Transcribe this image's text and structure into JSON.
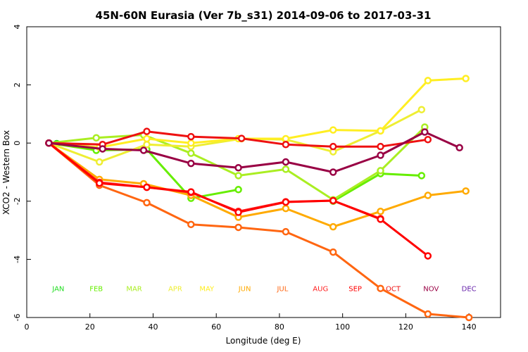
{
  "chart_data": {
    "type": "line",
    "title": "45N-60N Eurasia (Ver 7b_s31)   2014-09-06 to 2017-03-31",
    "xlabel": "Longitude (deg E)",
    "ylabel": "XCO2 - Western Box",
    "xlim": [
      0,
      150
    ],
    "ylim": [
      -6,
      4
    ],
    "x_ticks": [
      0,
      20,
      40,
      60,
      80,
      100,
      120,
      140
    ],
    "y_ticks": [
      -6,
      -4,
      -2,
      0,
      2,
      4
    ],
    "x_tick_labels": [
      "0",
      "20",
      "40",
      "60",
      "80",
      "100",
      "120",
      "140"
    ],
    "y_tick_labels": [
      "-6",
      "-4",
      "-2",
      "0",
      "2",
      "4"
    ],
    "grid": false,
    "legend_placement": "bottom (month labels in a row at y = -5)",
    "legend_y": -5,
    "series": [
      {
        "name": "JAN",
        "color": "#22dd22",
        "legend_x": 10,
        "x": [
          7,
          9.5
        ],
        "y": [
          0,
          -0.02
        ]
      },
      {
        "name": "FEB",
        "color": "#66ee00",
        "legend_x": 22,
        "x": [
          7,
          22,
          38,
          52,
          67,
          82,
          97,
          112,
          125
        ],
        "y": [
          0,
          -0.25,
          -0.22,
          -1.9,
          -1.6,
          null,
          -2.0,
          -1.05,
          -1.12
        ]
      },
      {
        "name": "MAR",
        "color": "#aaee22",
        "legend_x": 34,
        "x": [
          7,
          22,
          37,
          52,
          67,
          82,
          97,
          112,
          126
        ],
        "y": [
          0,
          0.18,
          0.28,
          -0.35,
          -1.12,
          -0.9,
          -1.95,
          -0.95,
          0.55
        ]
      },
      {
        "name": "APR",
        "color": "#eeee33",
        "legend_x": 47,
        "x": [
          7,
          23,
          38,
          52,
          68,
          82,
          97,
          112,
          125
        ],
        "y": [
          0,
          -0.65,
          -0.05,
          -0.12,
          0.15,
          0.12,
          -0.3,
          0.42,
          1.15
        ]
      },
      {
        "name": "MAY",
        "color": "#ffee22",
        "legend_x": 57,
        "x": [
          7,
          23,
          38,
          52,
          67,
          82,
          97,
          112,
          127,
          139
        ],
        "y": [
          0,
          -0.15,
          0.15,
          0.0,
          0.15,
          0.15,
          0.45,
          0.42,
          2.15,
          2.22
        ]
      },
      {
        "name": "JUN",
        "color": "#ffaa00",
        "legend_x": 69,
        "x": [
          7,
          23,
          37,
          52,
          67,
          82,
          97,
          112,
          127,
          139
        ],
        "y": [
          0,
          -1.25,
          -1.4,
          -1.8,
          -2.55,
          -2.25,
          -2.88,
          -2.35,
          -1.8,
          -1.65
        ]
      },
      {
        "name": "JUL",
        "color": "#ff6611",
        "legend_x": 81,
        "x": [
          7,
          23,
          38,
          52,
          67,
          82,
          97,
          112,
          127,
          140
        ],
        "y": [
          0,
          -1.45,
          -2.05,
          -2.8,
          -2.9,
          -3.05,
          -3.75,
          -5.0,
          -5.88,
          -6.0
        ]
      },
      {
        "name": "AUG",
        "color": "#ff2222",
        "legend_x": 93,
        "x": [
          7,
          23,
          38,
          52,
          67,
          82,
          97,
          112
        ],
        "y": [
          0,
          -1.35,
          -1.52,
          -1.7,
          -2.35,
          -2.02,
          -1.98,
          -2.6
        ]
      },
      {
        "name": "SEP",
        "color": "#ff0000",
        "legend_x": 104,
        "x": [
          7,
          23,
          38,
          52,
          67,
          82,
          97,
          112,
          127
        ],
        "y": [
          0,
          -1.38,
          -1.52,
          -1.68,
          -2.38,
          -2.03,
          -1.98,
          -2.62,
          -3.88
        ]
      },
      {
        "name": "OCT",
        "color": "#ee1111",
        "legend_x": 116,
        "x": [
          7,
          24,
          38,
          52,
          68,
          82,
          97,
          112,
          127
        ],
        "y": [
          0,
          -0.05,
          0.4,
          0.22,
          0.16,
          -0.05,
          -0.12,
          -0.12,
          0.12
        ]
      },
      {
        "name": "NOV",
        "color": "#990044",
        "legend_x": 128,
        "x": [
          7,
          24,
          37,
          52,
          67,
          82,
          97,
          112,
          126,
          137
        ],
        "y": [
          0,
          -0.2,
          -0.25,
          -0.7,
          -0.85,
          -0.65,
          -1.0,
          -0.42,
          0.38,
          -0.16
        ]
      },
      {
        "name": "DEC",
        "color": "#6622aa",
        "legend_x": 140,
        "x": [],
        "y": []
      }
    ]
  }
}
